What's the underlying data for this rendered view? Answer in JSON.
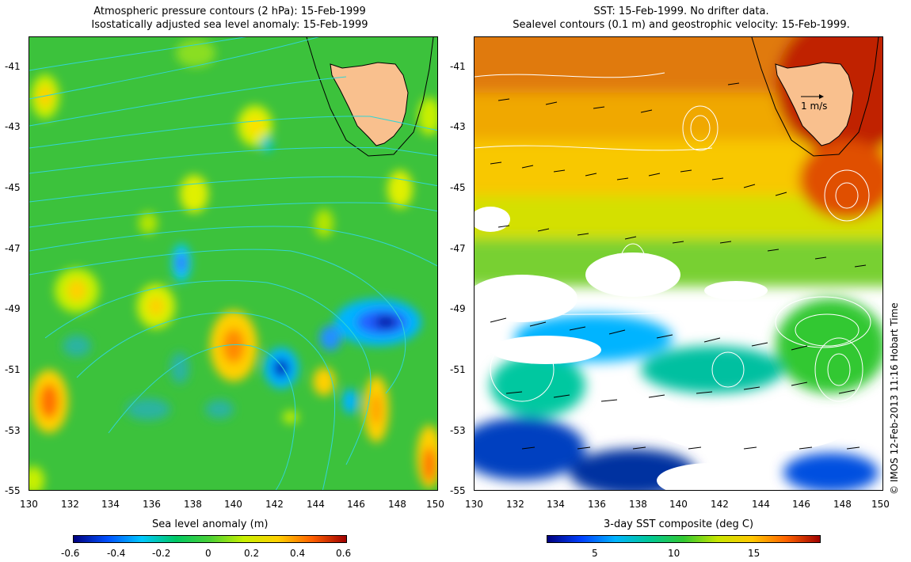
{
  "left_panel": {
    "title_line1": "Atmospheric pressure contours (2 hPa): 15-Feb-1999",
    "title_line2": "Isostatically adjusted sea level anomaly: 15-Feb-1999",
    "x_ticks": [
      "130",
      "132",
      "134",
      "136",
      "138",
      "140",
      "142",
      "144",
      "146",
      "148",
      "150"
    ],
    "y_ticks": [
      "-41",
      "-43",
      "-45",
      "-47",
      "-49",
      "-51",
      "-53",
      "-55"
    ],
    "colorbar": {
      "title": "Sea level anomaly (m)",
      "ticks": [
        "-0.6",
        "-0.4",
        "-0.2",
        "0",
        "0.2",
        "0.4",
        "0.6"
      ],
      "colors": [
        "#00007f",
        "#0050ff",
        "#00c8ff",
        "#00c864",
        "#4ad036",
        "#c8f000",
        "#ffd000",
        "#ff6000",
        "#a00000"
      ]
    }
  },
  "right_panel": {
    "title_line1": "SST: 15-Feb-1999. No drifter data.",
    "title_line2": "Sealevel contours (0.1 m) and geostrophic velocity: 15-Feb-1999.",
    "x_ticks": [
      "130",
      "132",
      "134",
      "136",
      "138",
      "140",
      "142",
      "144",
      "146",
      "148",
      "150"
    ],
    "y_ticks": [
      "-41",
      "-43",
      "-45",
      "-47",
      "-49",
      "-51",
      "-53",
      "-55"
    ],
    "velocity_scale_label": "1 m/s",
    "colorbar": {
      "title": "3-day SST composite (deg C)",
      "ticks": [
        "5",
        "10",
        "15"
      ],
      "colors": [
        "#00007f",
        "#0040ff",
        "#00b4ff",
        "#00c896",
        "#32c832",
        "#c8e600",
        "#ffc800",
        "#ff6400",
        "#a00000"
      ]
    }
  },
  "credit": "© IMOS 12-Feb-2013 11:16 Hobart Time",
  "colors": {
    "land": "#f9c08e",
    "sea_green": "#3cc23c",
    "pressure_contour": "#33d4d4",
    "sst_warm": "#e07a10"
  }
}
